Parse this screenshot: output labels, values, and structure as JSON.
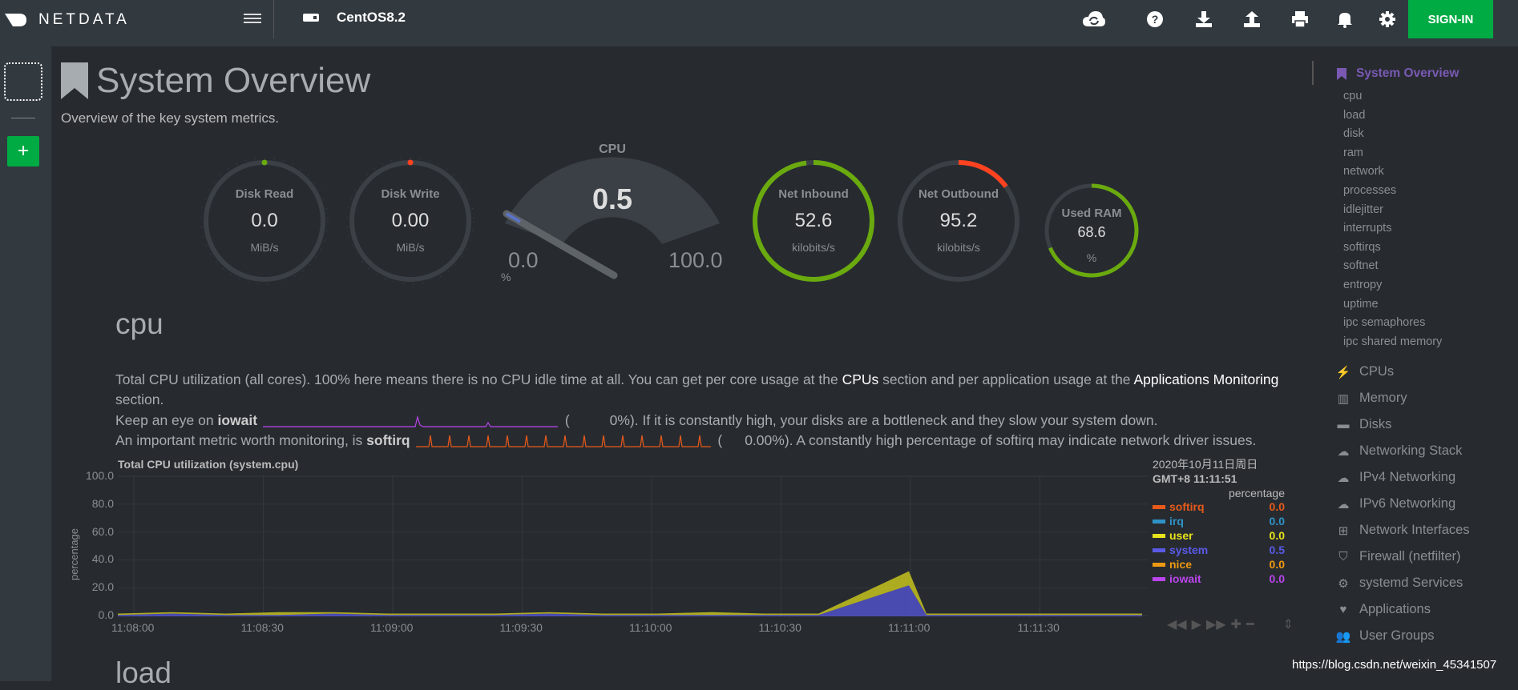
{
  "topbar": {
    "brand": "NETDATA",
    "host": "CentOS8.2",
    "signin_label": "SIGN-IN",
    "icons": [
      "cloud-sync-icon",
      "help-icon",
      "download-icon",
      "upload-icon",
      "print-icon",
      "bell-icon",
      "gear-icon"
    ]
  },
  "leftbar": {
    "add_label": "+"
  },
  "page": {
    "title": "System Overview",
    "subtitle": "Overview of the key system metrics."
  },
  "gauges": {
    "disk_read": {
      "label": "Disk Read",
      "value": "0.0",
      "unit": "MiB/s",
      "color": "#6aaa0e"
    },
    "disk_write": {
      "label": "Disk Write",
      "value": "0.00",
      "unit": "MiB/s",
      "color": "#ff4220"
    },
    "cpu": {
      "label": "CPU",
      "value": "0.5",
      "min": "0.0",
      "max": "100.0",
      "unit": "%",
      "percent": 0.5
    },
    "net_in": {
      "label": "Net Inbound",
      "value": "52.6",
      "unit": "kilobits/s",
      "color": "#6aaa0e",
      "fill": 0.98
    },
    "net_out": {
      "label": "Net Outbound",
      "value": "95.2",
      "unit": "kilobits/s",
      "color": "#ff4220",
      "fill": 0.15
    },
    "ram": {
      "label": "Used RAM",
      "value": "68.6",
      "unit": "%",
      "color": "#6aaa0e",
      "fill": 0.686
    }
  },
  "cpu_section": {
    "heading": "cpu",
    "desc1_a": "Total CPU utilization (all cores). 100% here means there is no CPU idle time at all. You can get per core usage at the ",
    "desc1_cpus": "CPUs",
    "desc1_b": " section and per application usage at the ",
    "desc1_apps": "Applications Monitoring",
    "desc1_c": "section.",
    "desc2_a": "Keep an eye on ",
    "desc2_bold": "iowait",
    "desc2_b": "(",
    "desc2_c": "0%). If it is constantly high, your disks are a bottleneck and they slow your system down.",
    "desc3_a": "An important metric worth monitoring, is ",
    "desc3_bold": "softirq",
    "desc3_b": "(",
    "desc3_c": "0.00%). A constantly high percentage of softirq may indicate network driver issues."
  },
  "chart": {
    "title": "Total CPU utilization (system.cpu)",
    "ylabel": "percentage",
    "date": "2020年10月11日周日",
    "time": "GMT+8 11:11:51",
    "unit": "percentage",
    "legend": [
      {
        "name": "softirq",
        "value": "0.0",
        "color": "#e75a1a"
      },
      {
        "name": "irq",
        "value": "0.0",
        "color": "#2f92c6"
      },
      {
        "name": "user",
        "value": "0.0",
        "color": "#e7e21a"
      },
      {
        "name": "system",
        "value": "0.5",
        "color": "#5a5ae7"
      },
      {
        "name": "nice",
        "value": "0.0",
        "color": "#ee9911"
      },
      {
        "name": "iowait",
        "value": "0.0",
        "color": "#bb44ee"
      }
    ]
  },
  "chart_data": {
    "type": "area",
    "title": "Total CPU utilization (system.cpu)",
    "ylabel": "percentage",
    "ylim": [
      0,
      100
    ],
    "yticks": [
      "100.0",
      "80.0",
      "60.0",
      "40.0",
      "20.0",
      "0.0"
    ],
    "xticks": [
      "11:08:00",
      "11:08:30",
      "11:09:00",
      "11:09:30",
      "11:10:00",
      "11:10:30",
      "11:11:00",
      "11:11:30"
    ],
    "series": [
      {
        "name": "system",
        "values": [
          1,
          2,
          1,
          1,
          2,
          1,
          1,
          1,
          2,
          1,
          1,
          1,
          1,
          1,
          22,
          1,
          1,
          1,
          1,
          1
        ]
      },
      {
        "name": "user",
        "values": [
          1,
          1,
          1,
          2,
          1,
          1,
          1,
          1,
          1,
          1,
          1,
          2,
          1,
          1,
          10,
          1,
          1,
          1,
          1,
          1
        ]
      }
    ],
    "grid": true
  },
  "load_section": {
    "heading": "load"
  },
  "rightnav": {
    "active": "System Overview",
    "subs": [
      "cpu",
      "load",
      "disk",
      "ram",
      "network",
      "processes",
      "idlejitter",
      "interrupts",
      "softirqs",
      "softnet",
      "entropy",
      "uptime",
      "ipc semaphores",
      "ipc shared memory"
    ],
    "mains": [
      {
        "label": "CPUs",
        "icon": "bolt-icon"
      },
      {
        "label": "Memory",
        "icon": "memory-icon"
      },
      {
        "label": "Disks",
        "icon": "hdd-icon"
      },
      {
        "label": "Networking Stack",
        "icon": "cloud-icon"
      },
      {
        "label": "IPv4 Networking",
        "icon": "cloud-icon"
      },
      {
        "label": "IPv6 Networking",
        "icon": "cloud-icon"
      },
      {
        "label": "Network Interfaces",
        "icon": "sitemap-icon"
      },
      {
        "label": "Firewall (netfilter)",
        "icon": "shield-icon"
      },
      {
        "label": "systemd Services",
        "icon": "cogs-icon"
      },
      {
        "label": "Applications",
        "icon": "heartbeat-icon"
      },
      {
        "label": "User Groups",
        "icon": "users-icon"
      }
    ]
  },
  "watermark": "https://blog.csdn.net/weixin_45341507"
}
